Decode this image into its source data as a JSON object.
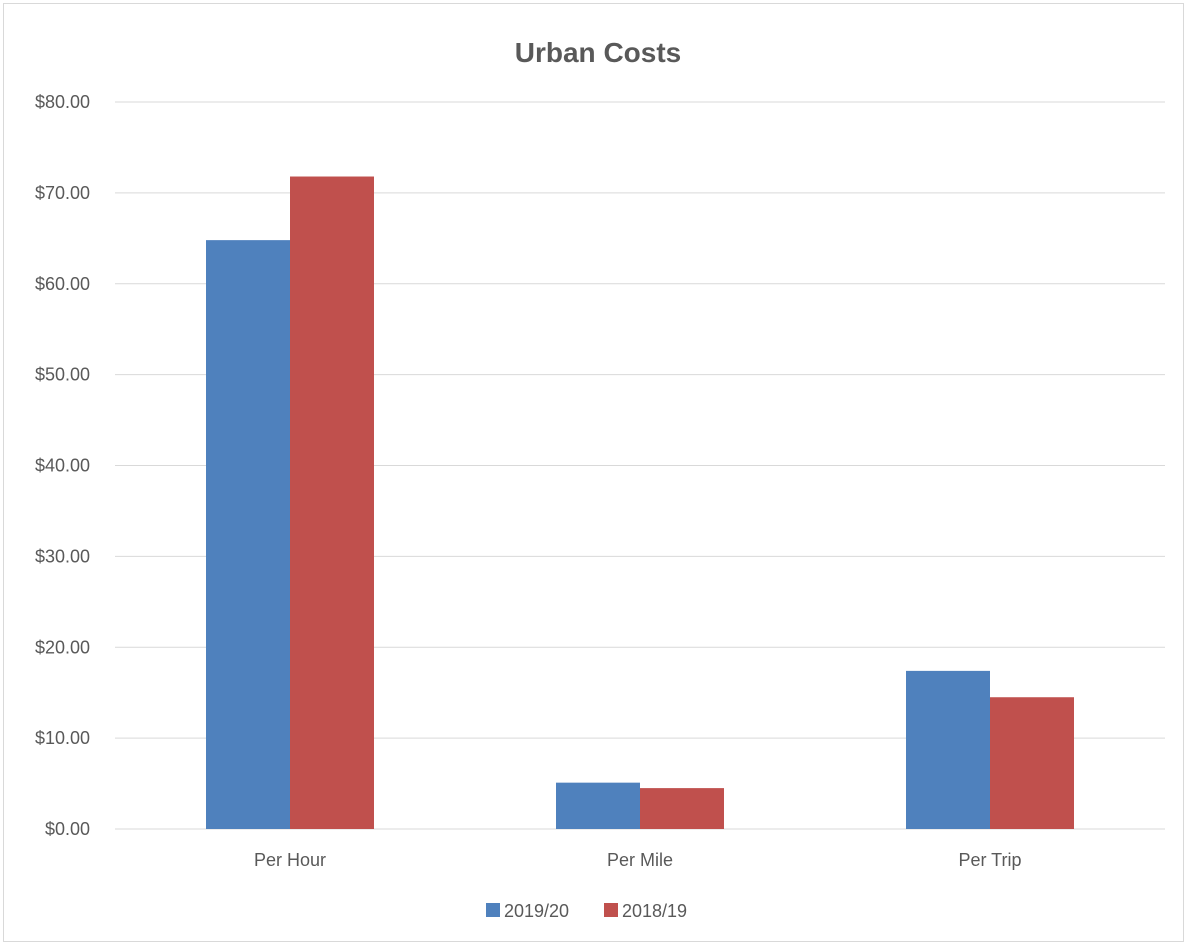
{
  "chart_data": {
    "type": "bar",
    "title": "Urban Costs",
    "xlabel": "",
    "ylabel": "",
    "categories": [
      "Per Hour",
      "Per Mile",
      "Per Trip"
    ],
    "series": [
      {
        "name": "2019/20",
        "color": "#4f81bd",
        "values": [
          64.8,
          5.1,
          17.4
        ]
      },
      {
        "name": "2018/19",
        "color": "#c0504d",
        "values": [
          71.8,
          4.5,
          14.5
        ]
      }
    ],
    "ylim": [
      0,
      80
    ],
    "y_ticks": [
      0,
      10,
      20,
      30,
      40,
      50,
      60,
      70,
      80
    ],
    "y_tick_labels": [
      "$0.00",
      "$10.00",
      "$20.00",
      "$30.00",
      "$40.00",
      "$50.00",
      "$60.00",
      "$70.00",
      "$80.00"
    ],
    "grid": true,
    "legend_position": "bottom"
  }
}
